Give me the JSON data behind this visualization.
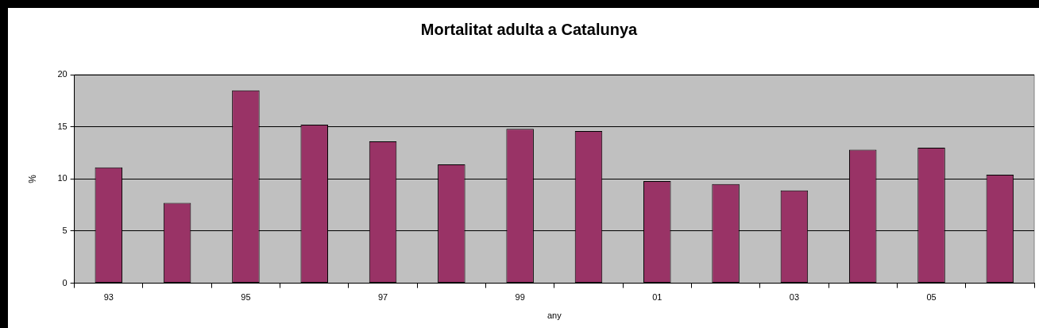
{
  "chart_data": {
    "type": "bar",
    "title": "Mortalitat adulta a Catalunya",
    "xlabel": "any",
    "ylabel": "%",
    "categories": [
      "93",
      null,
      "95",
      null,
      "97",
      null,
      "99",
      null,
      "01",
      null,
      "03",
      null,
      "05",
      null
    ],
    "values": [
      11.1,
      7.7,
      18.5,
      15.2,
      13.6,
      11.4,
      14.8,
      14.6,
      9.8,
      9.5,
      8.9,
      12.8,
      13.0,
      10.4
    ],
    "color": "#993366",
    "ylim": [
      0,
      20
    ],
    "yticks": [
      0,
      5,
      10,
      15,
      20
    ],
    "grid": "y"
  }
}
